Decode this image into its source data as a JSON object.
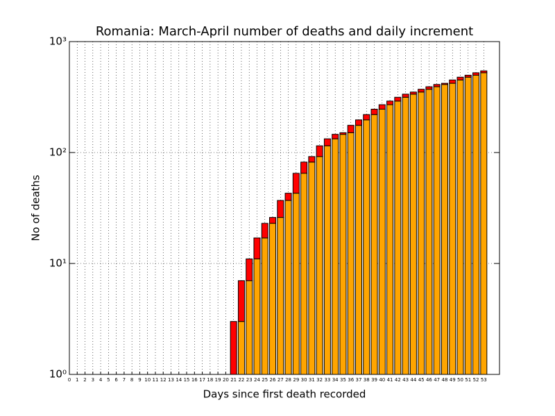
{
  "chart_data": {
    "type": "bar",
    "stacked": true,
    "log_scale": true,
    "grid": true,
    "title": "Romania: March-April number of deaths and daily increment",
    "x_label": "Days since first death recorded",
    "y_label": "No of deaths",
    "categories": [
      "0",
      "1",
      "2",
      "3",
      "4",
      "5",
      "6",
      "7",
      "8",
      "9",
      "10",
      "11",
      "12",
      "13",
      "14",
      "15",
      "16",
      "17",
      "18",
      "19",
      "20",
      "21",
      "22",
      "23",
      "24",
      "25",
      "26",
      "27",
      "28",
      "29",
      "30",
      "31",
      "32",
      "33",
      "34",
      "35",
      "36",
      "37",
      "38",
      "39",
      "40",
      "41",
      "42",
      "43",
      "44",
      "45",
      "46",
      "47",
      "48",
      "49",
      "50",
      "51",
      "52",
      "53"
    ],
    "series": [
      {
        "color": "#ffa500",
        "values": [
          null,
          null,
          null,
          null,
          null,
          null,
          null,
          null,
          null,
          null,
          null,
          null,
          null,
          null,
          null,
          null,
          null,
          null,
          null,
          null,
          null,
          null,
          3,
          7,
          11,
          17,
          23,
          26,
          37,
          43,
          65,
          82,
          92,
          115,
          133,
          146,
          151,
          176,
          197,
          220,
          246,
          270,
          291,
          315,
          336,
          351,
          372,
          392,
          411,
          421,
          451,
          478,
          498,
          524
        ]
      },
      {
        "color": "#ff0000",
        "values": [
          null,
          null,
          null,
          null,
          null,
          null,
          null,
          null,
          null,
          null,
          null,
          null,
          null,
          null,
          null,
          null,
          null,
          null,
          null,
          null,
          null,
          3,
          4,
          4,
          6,
          6,
          3,
          11,
          6,
          22,
          17,
          10,
          23,
          18,
          13,
          5,
          25,
          21,
          23,
          26,
          24,
          21,
          24,
          21,
          15,
          21,
          20,
          19,
          10,
          30,
          27,
          20,
          26,
          21
        ]
      }
    ],
    "ylim": [
      1,
      1000
    ],
    "yticks": [
      {
        "value": 1,
        "label": "10⁰"
      },
      {
        "value": 10,
        "label": "10¹"
      },
      {
        "value": 100,
        "label": "10²"
      },
      {
        "value": 1000,
        "label": "10³"
      }
    ]
  }
}
